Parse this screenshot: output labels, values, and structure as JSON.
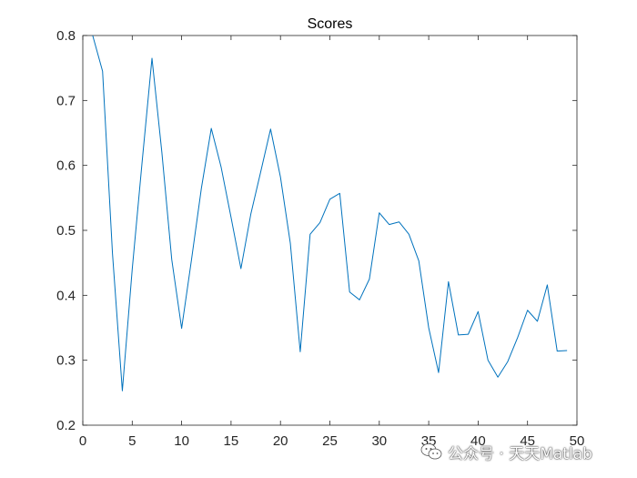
{
  "chart_data": {
    "type": "line",
    "title": "Scores",
    "xlabel": "",
    "ylabel": "",
    "xlim": [
      0,
      50
    ],
    "ylim": [
      0.2,
      0.8
    ],
    "xticks": [
      0,
      5,
      10,
      15,
      20,
      25,
      30,
      35,
      40,
      45,
      50
    ],
    "xtick_labels": [
      "0",
      "5",
      "10",
      "15",
      "20",
      "25",
      "30",
      "35",
      "40",
      "45",
      "50"
    ],
    "yticks": [
      0.2,
      0.3,
      0.4,
      0.5,
      0.6,
      0.7,
      0.8
    ],
    "ytick_labels": [
      "0.2",
      "0.3",
      "0.4",
      "0.5",
      "0.6",
      "0.7",
      "0.8"
    ],
    "grid": false,
    "box": true,
    "series": [
      {
        "color": "#0072BD",
        "x": [
          1,
          2,
          3,
          4,
          5,
          6,
          7,
          8,
          9,
          10,
          11,
          12,
          13,
          14,
          15,
          16,
          17,
          18,
          19,
          20,
          21,
          22,
          23,
          24,
          25,
          26,
          27,
          28,
          29,
          30,
          31,
          32,
          33,
          34,
          35,
          36,
          37,
          38,
          39,
          40,
          41,
          42,
          43,
          44,
          45,
          46,
          47,
          48,
          49
        ],
        "y": [
          0.8,
          0.745,
          0.465,
          0.253,
          0.44,
          0.605,
          0.765,
          0.62,
          0.455,
          0.349,
          0.455,
          0.565,
          0.657,
          0.597,
          0.52,
          0.441,
          0.525,
          0.59,
          0.656,
          0.582,
          0.48,
          0.313,
          0.494,
          0.512,
          0.548,
          0.557,
          0.405,
          0.393,
          0.425,
          0.527,
          0.509,
          0.513,
          0.494,
          0.453,
          0.35,
          0.281,
          0.421,
          0.339,
          0.34,
          0.375,
          0.3,
          0.274,
          0.298,
          0.335,
          0.377,
          0.36,
          0.416,
          0.314,
          0.315
        ]
      }
    ]
  },
  "watermark": {
    "text": "公众号 · 天天Matlab",
    "icon": "wechat-icon"
  }
}
